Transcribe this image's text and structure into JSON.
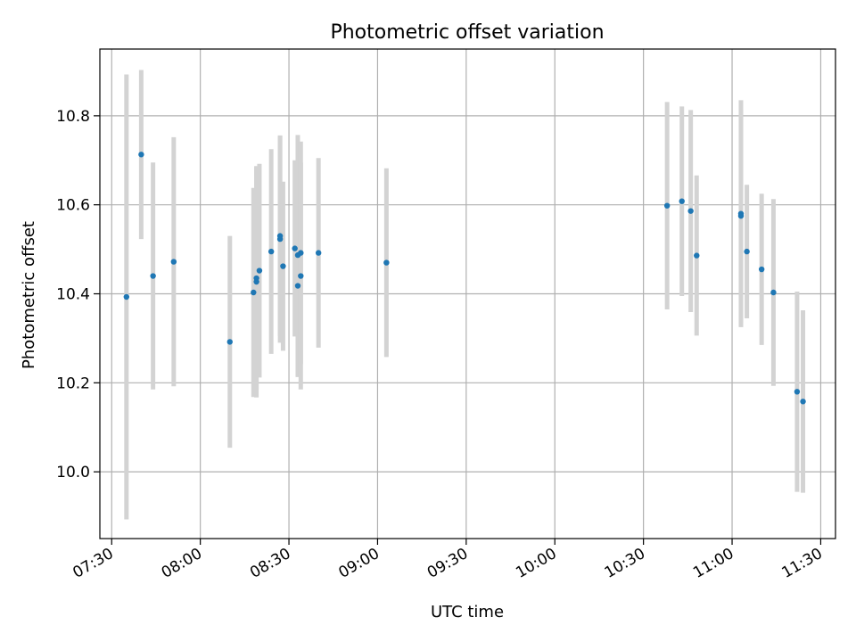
{
  "chart_data": {
    "type": "scatter",
    "title": "Photometric offset variation",
    "xlabel": "UTC time",
    "ylabel": "Photometric offset",
    "x_ticks": [
      "07:30",
      "08:00",
      "08:30",
      "09:00",
      "09:30",
      "10:00",
      "10:30",
      "11:00",
      "11:30"
    ],
    "y_ticks": [
      "10.0",
      "10.2",
      "10.4",
      "10.6",
      "10.8"
    ],
    "xlim": [
      "07:26",
      "11:35"
    ],
    "ylim": [
      9.85,
      10.95
    ],
    "grid": true,
    "marker_color": "#1f77b4",
    "errorbar_color": "#d3d3d3",
    "points": [
      {
        "time": "07:35",
        "y": 10.393,
        "err": 0.5
      },
      {
        "time": "07:40",
        "y": 10.713,
        "err": 0.19
      },
      {
        "time": "07:44",
        "y": 10.44,
        "err": 0.255
      },
      {
        "time": "07:51",
        "y": 10.472,
        "err": 0.28
      },
      {
        "time": "08:10",
        "y": 10.292,
        "err": 0.238
      },
      {
        "time": "08:18",
        "y": 10.403,
        "err": 0.235
      },
      {
        "time": "08:19",
        "y": 10.427,
        "err": 0.26
      },
      {
        "time": "08:19",
        "y": 10.435,
        "err": 0.25
      },
      {
        "time": "08:20",
        "y": 10.452,
        "err": 0.24
      },
      {
        "time": "08:24",
        "y": 10.495,
        "err": 0.23
      },
      {
        "time": "08:27",
        "y": 10.523,
        "err": 0.233
      },
      {
        "time": "08:27",
        "y": 10.53,
        "err": 0.225
      },
      {
        "time": "08:28",
        "y": 10.462,
        "err": 0.19
      },
      {
        "time": "08:32",
        "y": 10.502,
        "err": 0.198
      },
      {
        "time": "08:33",
        "y": 10.487,
        "err": 0.27
      },
      {
        "time": "08:33",
        "y": 10.418,
        "err": 0.205
      },
      {
        "time": "08:34",
        "y": 10.492,
        "err": 0.25
      },
      {
        "time": "08:34",
        "y": 10.44,
        "err": 0.255
      },
      {
        "time": "08:40",
        "y": 10.492,
        "err": 0.213
      },
      {
        "time": "09:03",
        "y": 10.47,
        "err": 0.212
      },
      {
        "time": "10:38",
        "y": 10.598,
        "err": 0.233
      },
      {
        "time": "10:43",
        "y": 10.608,
        "err": 0.213
      },
      {
        "time": "10:46",
        "y": 10.586,
        "err": 0.227
      },
      {
        "time": "10:48",
        "y": 10.486,
        "err": 0.18
      },
      {
        "time": "11:03",
        "y": 10.58,
        "err": 0.255
      },
      {
        "time": "11:03",
        "y": 10.575,
        "err": 0.24
      },
      {
        "time": "11:05",
        "y": 10.495,
        "err": 0.15
      },
      {
        "time": "11:10",
        "y": 10.455,
        "err": 0.17
      },
      {
        "time": "11:14",
        "y": 10.403,
        "err": 0.21
      },
      {
        "time": "11:22",
        "y": 10.18,
        "err": 0.225
      },
      {
        "time": "11:24",
        "y": 10.158,
        "err": 0.205
      }
    ]
  }
}
